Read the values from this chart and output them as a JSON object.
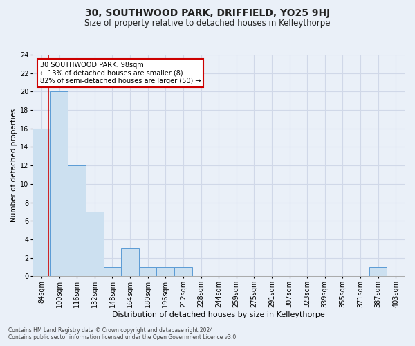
{
  "title": "30, SOUTHWOOD PARK, DRIFFIELD, YO25 9HJ",
  "subtitle": "Size of property relative to detached houses in Kelleythorpe",
  "xlabel": "Distribution of detached houses by size in Kelleythorpe",
  "ylabel": "Number of detached properties",
  "footnote1": "Contains HM Land Registry data © Crown copyright and database right 2024.",
  "footnote2": "Contains public sector information licensed under the Open Government Licence v3.0.",
  "bins": [
    "84sqm",
    "100sqm",
    "116sqm",
    "132sqm",
    "148sqm",
    "164sqm",
    "180sqm",
    "196sqm",
    "212sqm",
    "228sqm",
    "244sqm",
    "259sqm",
    "275sqm",
    "291sqm",
    "307sqm",
    "323sqm",
    "339sqm",
    "355sqm",
    "371sqm",
    "387sqm",
    "403sqm"
  ],
  "values": [
    16,
    20,
    12,
    7,
    1,
    3,
    1,
    1,
    1,
    0,
    0,
    0,
    0,
    0,
    0,
    0,
    0,
    0,
    0,
    1,
    0
  ],
  "bar_color": "#cce0f0",
  "bar_edge_color": "#5b9bd5",
  "grid_color": "#d0d8e8",
  "bg_color": "#eaf0f8",
  "subject_line_color": "#cc0000",
  "subject_line_bin_index": 0.875,
  "ylim": [
    0,
    24
  ],
  "yticks": [
    0,
    2,
    4,
    6,
    8,
    10,
    12,
    14,
    16,
    18,
    20,
    22,
    24
  ],
  "annotation_text": "30 SOUTHWOOD PARK: 98sqm\n← 13% of detached houses are smaller (8)\n82% of semi-detached houses are larger (50) →",
  "annotation_box_color": "#ffffff",
  "annotation_box_edge": "#cc0000",
  "title_fontsize": 10,
  "subtitle_fontsize": 8.5,
  "ylabel_fontsize": 7.5,
  "xlabel_fontsize": 8,
  "tick_fontsize": 7,
  "footnote_fontsize": 5.5,
  "annotation_fontsize": 7
}
